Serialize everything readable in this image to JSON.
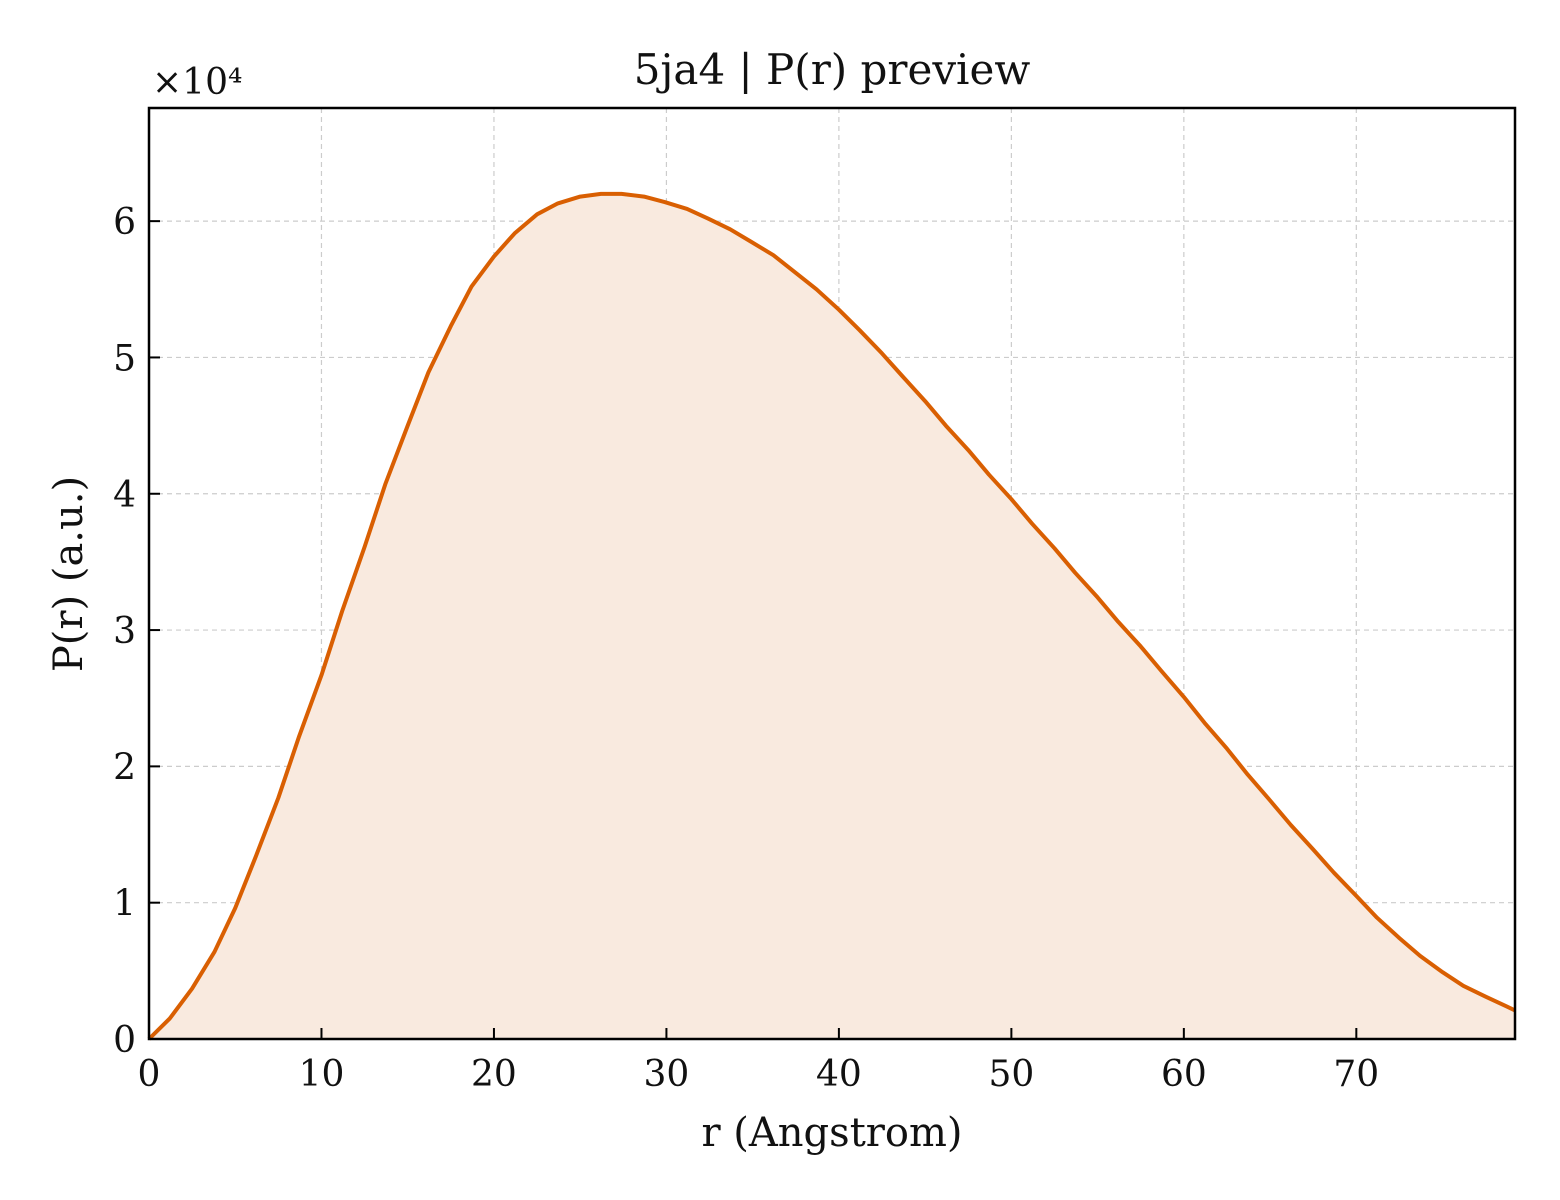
{
  "chart_data": {
    "type": "area",
    "title": "5ja4 | P(r) preview",
    "xlabel": "r (Angstrom)",
    "ylabel": "P(r) (a.u.)",
    "y_multiplier": "×10⁴",
    "xlim": [
      0,
      79.2
    ],
    "ylim": [
      0,
      6.83
    ],
    "xticks": [
      0,
      10,
      20,
      30,
      40,
      50,
      60,
      70
    ],
    "yticks": [
      0,
      1,
      2,
      3,
      4,
      5,
      6
    ],
    "grid": true,
    "line_color": "#d95f02",
    "fill_color": "#f9eadf",
    "series": [
      {
        "x": [
          0,
          1.2,
          2.5,
          3.8,
          5.0,
          6.2,
          7.5,
          8.7,
          10.0,
          11.2,
          12.5,
          13.7,
          15.0,
          16.2,
          17.5,
          18.7,
          20.0,
          21.2,
          22.5,
          23.7,
          25.0,
          26.2,
          27.4,
          28.7,
          29.9,
          31.2,
          32.4,
          33.7,
          34.9,
          36.2,
          37.4,
          38.7,
          40.0,
          41.2,
          42.5,
          43.7,
          45.0,
          46.2,
          47.5,
          48.7,
          50.0,
          51.2,
          52.5,
          53.7,
          55.0,
          56.2,
          57.5,
          58.7,
          60.0,
          61.2,
          62.5,
          63.7,
          65.0,
          66.2,
          67.5,
          68.7,
          70.0,
          71.2,
          72.5,
          73.7,
          75.0,
          76.2,
          77.5,
          78.7,
          79.2
        ],
        "y": [
          0.0,
          0.15,
          0.37,
          0.64,
          0.96,
          1.34,
          1.77,
          2.22,
          2.67,
          3.14,
          3.61,
          4.07,
          4.5,
          4.89,
          5.23,
          5.52,
          5.74,
          5.91,
          6.05,
          6.13,
          6.18,
          6.2,
          6.2,
          6.18,
          6.14,
          6.09,
          6.02,
          5.94,
          5.85,
          5.75,
          5.63,
          5.5,
          5.35,
          5.2,
          5.03,
          4.86,
          4.68,
          4.5,
          4.32,
          4.14,
          3.96,
          3.78,
          3.6,
          3.42,
          3.24,
          3.06,
          2.88,
          2.7,
          2.51,
          2.32,
          2.13,
          1.94,
          1.75,
          1.57,
          1.39,
          1.22,
          1.05,
          0.89,
          0.74,
          0.61,
          0.49,
          0.39,
          0.31,
          0.24,
          0.21
        ]
      }
    ]
  }
}
